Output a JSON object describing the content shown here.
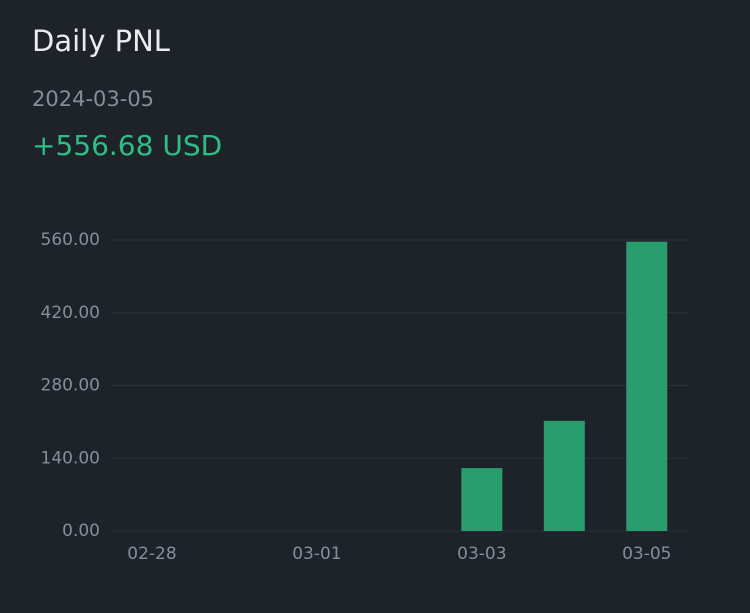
{
  "chart_data": {
    "type": "bar",
    "title": "Daily PNL",
    "subtitle": "2024-03-05",
    "annotation": "+556.68 USD",
    "categories": [
      "02-28",
      null,
      "03-01",
      null,
      "03-03",
      null,
      "03-05"
    ],
    "values": [
      0,
      0,
      0,
      0,
      121,
      212,
      556.68
    ],
    "color": "#2a9d6f",
    "ylim": [
      0,
      560
    ],
    "yticks": [
      {
        "value": 0,
        "label": "0.00"
      },
      {
        "value": 140,
        "label": "140.00"
      },
      {
        "value": 280,
        "label": "280.00"
      },
      {
        "value": 420,
        "label": "420.00"
      },
      {
        "value": 560,
        "label": "560.00"
      }
    ],
    "grid": true
  }
}
